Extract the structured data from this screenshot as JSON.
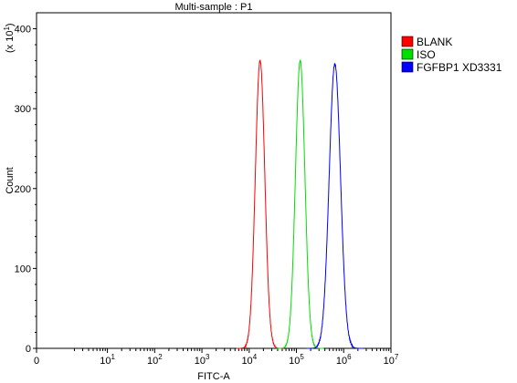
{
  "chart_data": {
    "type": "line",
    "title": "Multi-sample : P1",
    "xlabel": "FITC-A",
    "ylabel": "Count",
    "y_scale_note": "(x 10",
    "y_scale_exp": "1",
    "y_scale_close": ")",
    "x_scale": "log",
    "xlim": [
      0,
      10000000
    ],
    "ylim": [
      0,
      420
    ],
    "x_ticks": [
      {
        "base": "0",
        "exp": "",
        "value": 0
      },
      {
        "base": "10",
        "exp": "1",
        "value": 10
      },
      {
        "base": "10",
        "exp": "2",
        "value": 100
      },
      {
        "base": "10",
        "exp": "3",
        "value": 1000
      },
      {
        "base": "10",
        "exp": "4",
        "value": 10000
      },
      {
        "base": "10",
        "exp": "5",
        "value": 100000
      },
      {
        "base": "10",
        "exp": "6",
        "value": 1000000
      },
      {
        "base": "10",
        "exp": "7",
        "value": 10000000
      }
    ],
    "y_ticks": [
      "0",
      "100",
      "200",
      "300",
      "400"
    ],
    "y_tick_values": [
      0,
      100,
      200,
      300,
      400
    ],
    "legend_position": "top-right",
    "series": [
      {
        "name": "BLANK",
        "color": "#ff0000",
        "peak_x": 17000,
        "peak_y": 360,
        "width_decades": 0.1
      },
      {
        "name": "ISO",
        "color": "#00e000",
        "peak_x": 120000,
        "peak_y": 360,
        "width_decades": 0.1
      },
      {
        "name": "FGFBP1 XD3331",
        "color": "#0000ff",
        "peak_x": 650000,
        "peak_y": 356,
        "width_decades": 0.12
      }
    ]
  }
}
